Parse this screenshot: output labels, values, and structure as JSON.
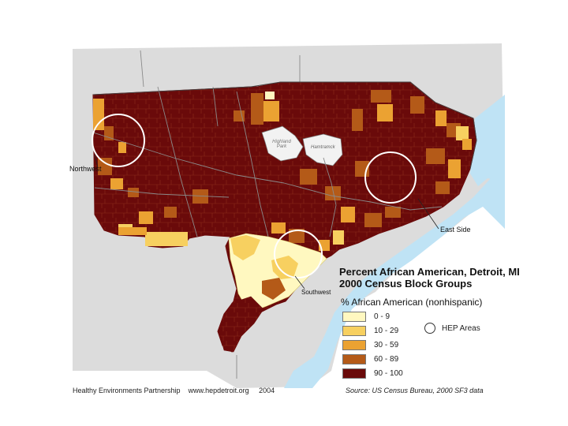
{
  "map": {
    "title_line1": "Percent African American, Detroit, MI",
    "title_line2": "2000 Census Block Groups",
    "legend_title": "% African American (nonhispanic)",
    "legend": [
      {
        "label": "0 - 9",
        "color": "#fff8c0"
      },
      {
        "label": "10 - 29",
        "color": "#f7d060"
      },
      {
        "label": "30 - 59",
        "color": "#eba232"
      },
      {
        "label": "60 - 89",
        "color": "#b45a18"
      },
      {
        "label": "90 - 100",
        "color": "#6a0a0a"
      }
    ],
    "hfp_label": "HEP Areas",
    "areas": {
      "northwest": "Northwest",
      "east_side": "East Side",
      "southwest": "Southwest"
    },
    "enclaves": {
      "highland_park": "Highland Park",
      "hamtramck": "Hamtramck"
    },
    "footer": "Healthy Environments Partnership    www.hepdetroit.org     2004",
    "source": "Source:  US Census Bureau, 2000 SF3 data",
    "colors": {
      "land": "#dcdcdc",
      "water": "#bfe3f5",
      "enclave": "#f2f2f2"
    }
  }
}
